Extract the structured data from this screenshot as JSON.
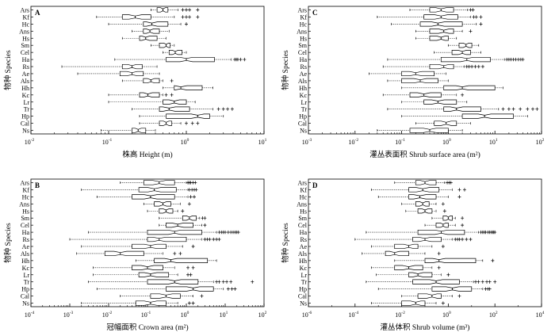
{
  "chart_data": [
    {
      "type": "boxplot",
      "panel_label": "A",
      "xlabel": "株高 Height (m)",
      "ylabel": "物种 Species",
      "xscale": "log",
      "xlim": [
        0.01,
        10
      ],
      "xticks": [
        {
          "v": 0.01,
          "base": "10",
          "exp": "-2"
        },
        {
          "v": 0.1,
          "base": "10",
          "exp": "-1"
        },
        {
          "v": 1,
          "base": "10",
          "exp": "0"
        },
        {
          "v": 10,
          "base": "10",
          "exp": "1"
        }
      ],
      "categories": [
        "Ars",
        "Kf",
        "Hc",
        "Ans",
        "Hs",
        "Sm",
        "Cel",
        "Ha",
        "Rs",
        "Ae",
        "Als",
        "Hh",
        "Kc",
        "Lr",
        "Tr",
        "Hp",
        "Cal",
        "Ns"
      ],
      "boxes": [
        {
          "min": 0.35,
          "q1": 0.42,
          "med": 0.5,
          "q3": 0.58,
          "max": 0.78,
          "out": [
            0.9,
            1.0,
            1.1,
            1.4
          ]
        },
        {
          "min": 0.07,
          "q1": 0.15,
          "med": 0.22,
          "q3": 0.35,
          "max": 0.7,
          "out": [
            0.9,
            1.0,
            1.1,
            1.4
          ]
        },
        {
          "min": 0.1,
          "q1": 0.28,
          "med": 0.36,
          "q3": 0.58,
          "max": 0.85,
          "out": [
            1.0
          ]
        },
        {
          "min": 0.2,
          "q1": 0.28,
          "med": 0.34,
          "q3": 0.45,
          "max": 0.6,
          "out": []
        },
        {
          "min": 0.15,
          "q1": 0.25,
          "med": 0.3,
          "q3": 0.42,
          "max": 0.55,
          "out": []
        },
        {
          "min": 0.35,
          "q1": 0.45,
          "med": 0.55,
          "q3": 0.62,
          "max": 0.7,
          "out": []
        },
        {
          "min": 0.5,
          "q1": 0.6,
          "med": 0.72,
          "q3": 0.88,
          "max": 1.0,
          "out": []
        },
        {
          "min": 0.12,
          "q1": 0.55,
          "med": 1.0,
          "q3": 2.3,
          "max": 3.8,
          "out": [
            4.2,
            4.4,
            4.6,
            5.0,
            5.6
          ]
        },
        {
          "min": 0.025,
          "q1": 0.15,
          "med": 0.2,
          "q3": 0.27,
          "max": 0.42,
          "out": []
        },
        {
          "min": 0.04,
          "q1": 0.14,
          "med": 0.2,
          "q3": 0.28,
          "max": 0.45,
          "out": []
        },
        {
          "min": 0.15,
          "q1": 0.28,
          "med": 0.35,
          "q3": 0.45,
          "max": 0.5,
          "out": [
            0.65
          ]
        },
        {
          "min": 0.5,
          "q1": 0.7,
          "med": 0.85,
          "q3": 1.6,
          "max": 2.2,
          "out": []
        },
        {
          "min": 0.1,
          "q1": 0.25,
          "med": 0.32,
          "q3": 0.45,
          "max": 0.5,
          "out": [
            0.55,
            0.65
          ]
        },
        {
          "min": 0.1,
          "q1": 0.5,
          "med": 0.7,
          "q3": 1.0,
          "max": 1.3,
          "out": []
        },
        {
          "min": 0.2,
          "q1": 0.45,
          "med": 0.6,
          "q3": 1.1,
          "max": 2.2,
          "out": [
            2.6,
            3.0,
            3.4,
            3.9
          ]
        },
        {
          "min": 0.25,
          "q1": 0.55,
          "med": 1.4,
          "q3": 2.0,
          "max": 3.0,
          "out": []
        },
        {
          "min": 0.25,
          "q1": 0.45,
          "med": 0.55,
          "q3": 0.65,
          "max": 0.85,
          "out": [
            1.0,
            1.2,
            1.4
          ]
        },
        {
          "min": 0.08,
          "q1": 0.2,
          "med": 0.24,
          "q3": 0.3,
          "max": 0.4,
          "out": []
        }
      ]
    },
    {
      "type": "boxplot",
      "panel_label": "C",
      "xlabel": "灌丛表面积 Shrub surface area (m²)",
      "ylabel": "物种 Species",
      "xscale": "log",
      "xlim": [
        0.001,
        100
      ],
      "xticks": [
        {
          "v": 0.001,
          "base": "10",
          "exp": "-3"
        },
        {
          "v": 0.01,
          "base": "10",
          "exp": "-2"
        },
        {
          "v": 0.1,
          "base": "10",
          "exp": "-1"
        },
        {
          "v": 1,
          "base": "10",
          "exp": "0"
        },
        {
          "v": 10,
          "base": "10",
          "exp": "1"
        },
        {
          "v": 100,
          "base": "10",
          "exp": "2"
        }
      ],
      "categories": [
        "Ars",
        "Kf",
        "Hc",
        "Ans",
        "Hs",
        "Sm",
        "Cel",
        "Ha",
        "Rs",
        "Ae",
        "Als",
        "Hh",
        "Kc",
        "Lr",
        "Tr",
        "Hp",
        "Cal",
        "Ns"
      ],
      "boxes": [
        {
          "min": 0.15,
          "q1": 0.4,
          "med": 0.7,
          "q3": 1.3,
          "max": 2.6,
          "out": [
            3.0,
            3.4
          ]
        },
        {
          "min": 0.03,
          "q1": 0.3,
          "med": 0.7,
          "q3": 1.6,
          "max": 3.0,
          "out": [
            3.5,
            4.0,
            5.0
          ]
        },
        {
          "min": 0.06,
          "q1": 0.25,
          "med": 0.6,
          "q3": 2.0,
          "max": 4.0,
          "out": [
            5.0
          ]
        },
        {
          "min": 0.2,
          "q1": 0.4,
          "med": 0.8,
          "q3": 1.3,
          "max": 2.0,
          "out": [
            3.0
          ]
        },
        {
          "min": 0.2,
          "q1": 0.4,
          "med": 0.7,
          "q3": 1.0,
          "max": 1.5,
          "out": []
        },
        {
          "min": 1.0,
          "q1": 1.7,
          "med": 2.4,
          "q3": 3.2,
          "max": 4.5,
          "out": []
        },
        {
          "min": 0.5,
          "q1": 1.2,
          "med": 2.0,
          "q3": 3.0,
          "max": 5.0,
          "out": []
        },
        {
          "min": 0.05,
          "q1": 0.7,
          "med": 2.5,
          "q3": 8.0,
          "max": 16.0,
          "out": [
            18,
            20,
            22,
            25,
            28,
            32,
            36,
            40
          ]
        },
        {
          "min": 0.04,
          "q1": 0.4,
          "med": 0.8,
          "q3": 1.3,
          "max": 2.2,
          "out": [
            2.5,
            2.8,
            3.2,
            3.8,
            4.5,
            5.5
          ]
        },
        {
          "min": 0.02,
          "q1": 0.1,
          "med": 0.2,
          "q3": 0.5,
          "max": 0.9,
          "out": []
        },
        {
          "min": 0.05,
          "q1": 0.1,
          "med": 0.25,
          "q3": 0.6,
          "max": 1.0,
          "out": []
        },
        {
          "min": 0.1,
          "q1": 0.8,
          "med": 2.0,
          "q3": 10.0,
          "max": 15.0,
          "out": []
        },
        {
          "min": 0.04,
          "q1": 0.15,
          "med": 0.3,
          "q3": 0.7,
          "max": 1.5,
          "out": [
            2.0
          ]
        },
        {
          "min": 0.1,
          "q1": 0.3,
          "med": 0.6,
          "q3": 1.5,
          "max": 2.5,
          "out": []
        },
        {
          "min": 0.05,
          "q1": 0.8,
          "med": 1.5,
          "q3": 5.0,
          "max": 12.0,
          "out": [
            15,
            20,
            25,
            35,
            50,
            65,
            80
          ]
        },
        {
          "min": 0.1,
          "q1": 2.0,
          "med": 6.0,
          "q3": 25.0,
          "max": 50.0,
          "out": []
        },
        {
          "min": 0.2,
          "q1": 0.5,
          "med": 0.9,
          "q3": 1.5,
          "max": 3.0,
          "out": []
        },
        {
          "min": 0.03,
          "q1": 0.15,
          "med": 0.4,
          "q3": 1.0,
          "max": 2.0,
          "out": []
        }
      ]
    },
    {
      "type": "boxplot",
      "panel_label": "B",
      "xlabel": "冠幅面积 Crown area (m²)",
      "ylabel": "物种 Species",
      "xscale": "log",
      "xlim": [
        0.0001,
        100
      ],
      "xticks": [
        {
          "v": 0.0001,
          "base": "10",
          "exp": "-4"
        },
        {
          "v": 0.001,
          "base": "10",
          "exp": "-3"
        },
        {
          "v": 0.01,
          "base": "10",
          "exp": "-2"
        },
        {
          "v": 0.1,
          "base": "10",
          "exp": "-1"
        },
        {
          "v": 1,
          "base": "10",
          "exp": "0"
        },
        {
          "v": 10,
          "base": "10",
          "exp": "1"
        },
        {
          "v": 100,
          "base": "10",
          "exp": "2"
        }
      ],
      "categories": [
        "Ars",
        "Kf",
        "Hc",
        "Ans",
        "Hs",
        "Sm",
        "Cel",
        "Ha",
        "Rs",
        "Ae",
        "Als",
        "Hh",
        "Kc",
        "Lr",
        "Tr",
        "Hp",
        "Cal",
        "Ns"
      ],
      "boxes": [
        {
          "min": 0.02,
          "q1": 0.08,
          "med": 0.2,
          "q3": 0.5,
          "max": 1.0,
          "out": [
            1.1,
            1.2,
            1.3,
            1.5,
            1.7
          ]
        },
        {
          "min": 0.002,
          "q1": 0.06,
          "med": 0.15,
          "q3": 0.55,
          "max": 1.1,
          "out": [
            1.2,
            1.4,
            1.6,
            1.8
          ]
        },
        {
          "min": 0.005,
          "q1": 0.04,
          "med": 0.12,
          "q3": 0.5,
          "max": 1.1,
          "out": [
            1.3,
            1.6
          ]
        },
        {
          "min": 0.08,
          "q1": 0.15,
          "med": 0.25,
          "q3": 0.4,
          "max": 0.7,
          "out": [
            1.2
          ]
        },
        {
          "min": 0.1,
          "q1": 0.2,
          "med": 0.3,
          "q3": 0.45,
          "max": 0.6,
          "out": [
            0.8
          ]
        },
        {
          "min": 0.2,
          "q1": 0.8,
          "med": 1.2,
          "q3": 1.8,
          "max": 2.2,
          "out": [
            2.6,
            3.0
          ]
        },
        {
          "min": 0.2,
          "q1": 0.3,
          "med": 0.6,
          "q3": 1.5,
          "max": 2.5,
          "out": [
            3.0
          ]
        },
        {
          "min": 0.003,
          "q1": 0.1,
          "med": 0.5,
          "q3": 2.5,
          "max": 6.0,
          "out": [
            7,
            8,
            9,
            10,
            12,
            14,
            16,
            18,
            20,
            22
          ]
        },
        {
          "min": 0.001,
          "q1": 0.1,
          "med": 0.2,
          "q3": 1.0,
          "max": 2.5,
          "out": [
            3,
            3.5,
            4,
            5,
            6,
            7
          ]
        },
        {
          "min": 0.002,
          "q1": 0.04,
          "med": 0.12,
          "q3": 0.3,
          "max": 0.8,
          "out": [
            1.5
          ]
        },
        {
          "min": 0.0015,
          "q1": 0.008,
          "med": 0.02,
          "q3": 0.08,
          "max": 0.25,
          "out": [
            0.5,
            0.7
          ]
        },
        {
          "min": 0.05,
          "q1": 0.15,
          "med": 0.4,
          "q3": 3.5,
          "max": 6.0,
          "out": []
        },
        {
          "min": 0.004,
          "q1": 0.04,
          "med": 0.1,
          "q3": 0.25,
          "max": 0.5,
          "out": [
            1.1,
            1.5
          ]
        },
        {
          "min": 0.004,
          "q1": 0.06,
          "med": 0.12,
          "q3": 0.35,
          "max": 0.6,
          "out": [
            1.1,
            1.3
          ]
        },
        {
          "min": 0.003,
          "q1": 0.1,
          "med": 0.5,
          "q3": 2.0,
          "max": 5.0,
          "out": [
            6,
            7,
            9,
            11,
            14,
            50
          ]
        },
        {
          "min": 0.005,
          "q1": 0.3,
          "med": 1.5,
          "q3": 5.0,
          "max": 9.0,
          "out": [
            12,
            15,
            18
          ]
        },
        {
          "min": 0.02,
          "q1": 0.12,
          "med": 0.3,
          "q3": 0.7,
          "max": 1.5,
          "out": [
            2.5
          ]
        },
        {
          "min": 0.002,
          "q1": 0.05,
          "med": 0.12,
          "q3": 0.3,
          "max": 0.6,
          "out": [
            1.2,
            1.5
          ]
        }
      ]
    },
    {
      "type": "boxplot",
      "panel_label": "D",
      "xlabel": "灌丛体积 Shrub volume (m³)",
      "ylabel": "物种 Species",
      "xscale": "log",
      "xlim": [
        1e-06,
        10000
      ],
      "xticks": [
        {
          "v": 1e-06,
          "base": "10",
          "exp": "-6"
        },
        {
          "v": 0.0001,
          "base": "10",
          "exp": "-4"
        },
        {
          "v": 0.01,
          "base": "10",
          "exp": "-2"
        },
        {
          "v": 1,
          "base": "10",
          "exp": "0"
        },
        {
          "v": 100,
          "base": "10",
          "exp": "2"
        },
        {
          "v": 10000,
          "base": "10",
          "exp": "4"
        }
      ],
      "categories": [
        "Ars",
        "Kf",
        "Hc",
        "Ans",
        "Hs",
        "Sm",
        "Cel",
        "Ha",
        "Rs",
        "Ae",
        "Als",
        "Hh",
        "Kc",
        "Lr",
        "Tr",
        "Hp",
        "Cal",
        "Ns"
      ],
      "boxes": [
        {
          "min": 0.005,
          "q1": 0.04,
          "med": 0.1,
          "q3": 0.3,
          "max": 0.7,
          "out": [
            0.9,
            1.1,
            1.3
          ]
        },
        {
          "min": 0.0005,
          "q1": 0.02,
          "med": 0.08,
          "q3": 0.4,
          "max": 1.5,
          "out": [
            3,
            5
          ]
        },
        {
          "min": 0.001,
          "q1": 0.02,
          "med": 0.06,
          "q3": 0.3,
          "max": 1.0,
          "out": [
            3
          ]
        },
        {
          "min": 0.01,
          "q1": 0.04,
          "med": 0.08,
          "q3": 0.15,
          "max": 0.3,
          "out": [
            0.6
          ]
        },
        {
          "min": 0.015,
          "q1": 0.05,
          "med": 0.1,
          "q3": 0.2,
          "max": 0.3,
          "out": [
            0.7
          ]
        },
        {
          "min": 0.2,
          "q1": 0.6,
          "med": 1.0,
          "q3": 1.5,
          "max": 2.0,
          "out": [
            4.0
          ]
        },
        {
          "min": 0.1,
          "q1": 0.3,
          "med": 0.6,
          "q3": 1.0,
          "max": 2.0,
          "out": [
            4.0
          ]
        },
        {
          "min": 0.0003,
          "q1": 0.05,
          "med": 0.5,
          "q3": 5.0,
          "max": 20,
          "out": [
            25,
            30,
            35,
            40,
            50,
            60,
            70,
            80,
            90,
            100
          ]
        },
        {
          "min": 0.0001,
          "q1": 0.03,
          "med": 0.1,
          "q3": 0.5,
          "max": 1.5,
          "out": [
            2,
            2.5,
            3,
            4,
            6,
            9
          ]
        },
        {
          "min": 0.0005,
          "q1": 0.005,
          "med": 0.02,
          "q3": 0.05,
          "max": 0.2,
          "out": [
            0.6
          ]
        },
        {
          "min": 0.0002,
          "q1": 0.002,
          "med": 0.005,
          "q3": 0.02,
          "max": 0.1,
          "out": [
            0.4
          ]
        },
        {
          "min": 0.005,
          "q1": 0.1,
          "med": 0.4,
          "q3": 15,
          "max": 30,
          "out": [
            80
          ]
        },
        {
          "min": 0.0005,
          "q1": 0.005,
          "med": 0.02,
          "q3": 0.08,
          "max": 0.2,
          "out": [
            0.4
          ]
        },
        {
          "min": 0.0008,
          "q1": 0.02,
          "med": 0.05,
          "q3": 0.2,
          "max": 0.5,
          "out": [
            1.0
          ]
        },
        {
          "min": 0.0003,
          "q1": 0.03,
          "med": 0.3,
          "q3": 3.0,
          "max": 12,
          "out": [
            15,
            20,
            30,
            45,
            60,
            100
          ]
        },
        {
          "min": 0.001,
          "q1": 0.2,
          "med": 1.5,
          "q3": 10,
          "max": 30,
          "out": [
            40,
            50,
            60
          ]
        },
        {
          "min": 0.01,
          "q1": 0.05,
          "med": 0.2,
          "q3": 0.5,
          "max": 1.5,
          "out": [
            3
          ]
        },
        {
          "min": 0.0005,
          "q1": 0.01,
          "med": 0.04,
          "q3": 0.1,
          "max": 0.3,
          "out": [
            0.6
          ]
        }
      ]
    }
  ]
}
